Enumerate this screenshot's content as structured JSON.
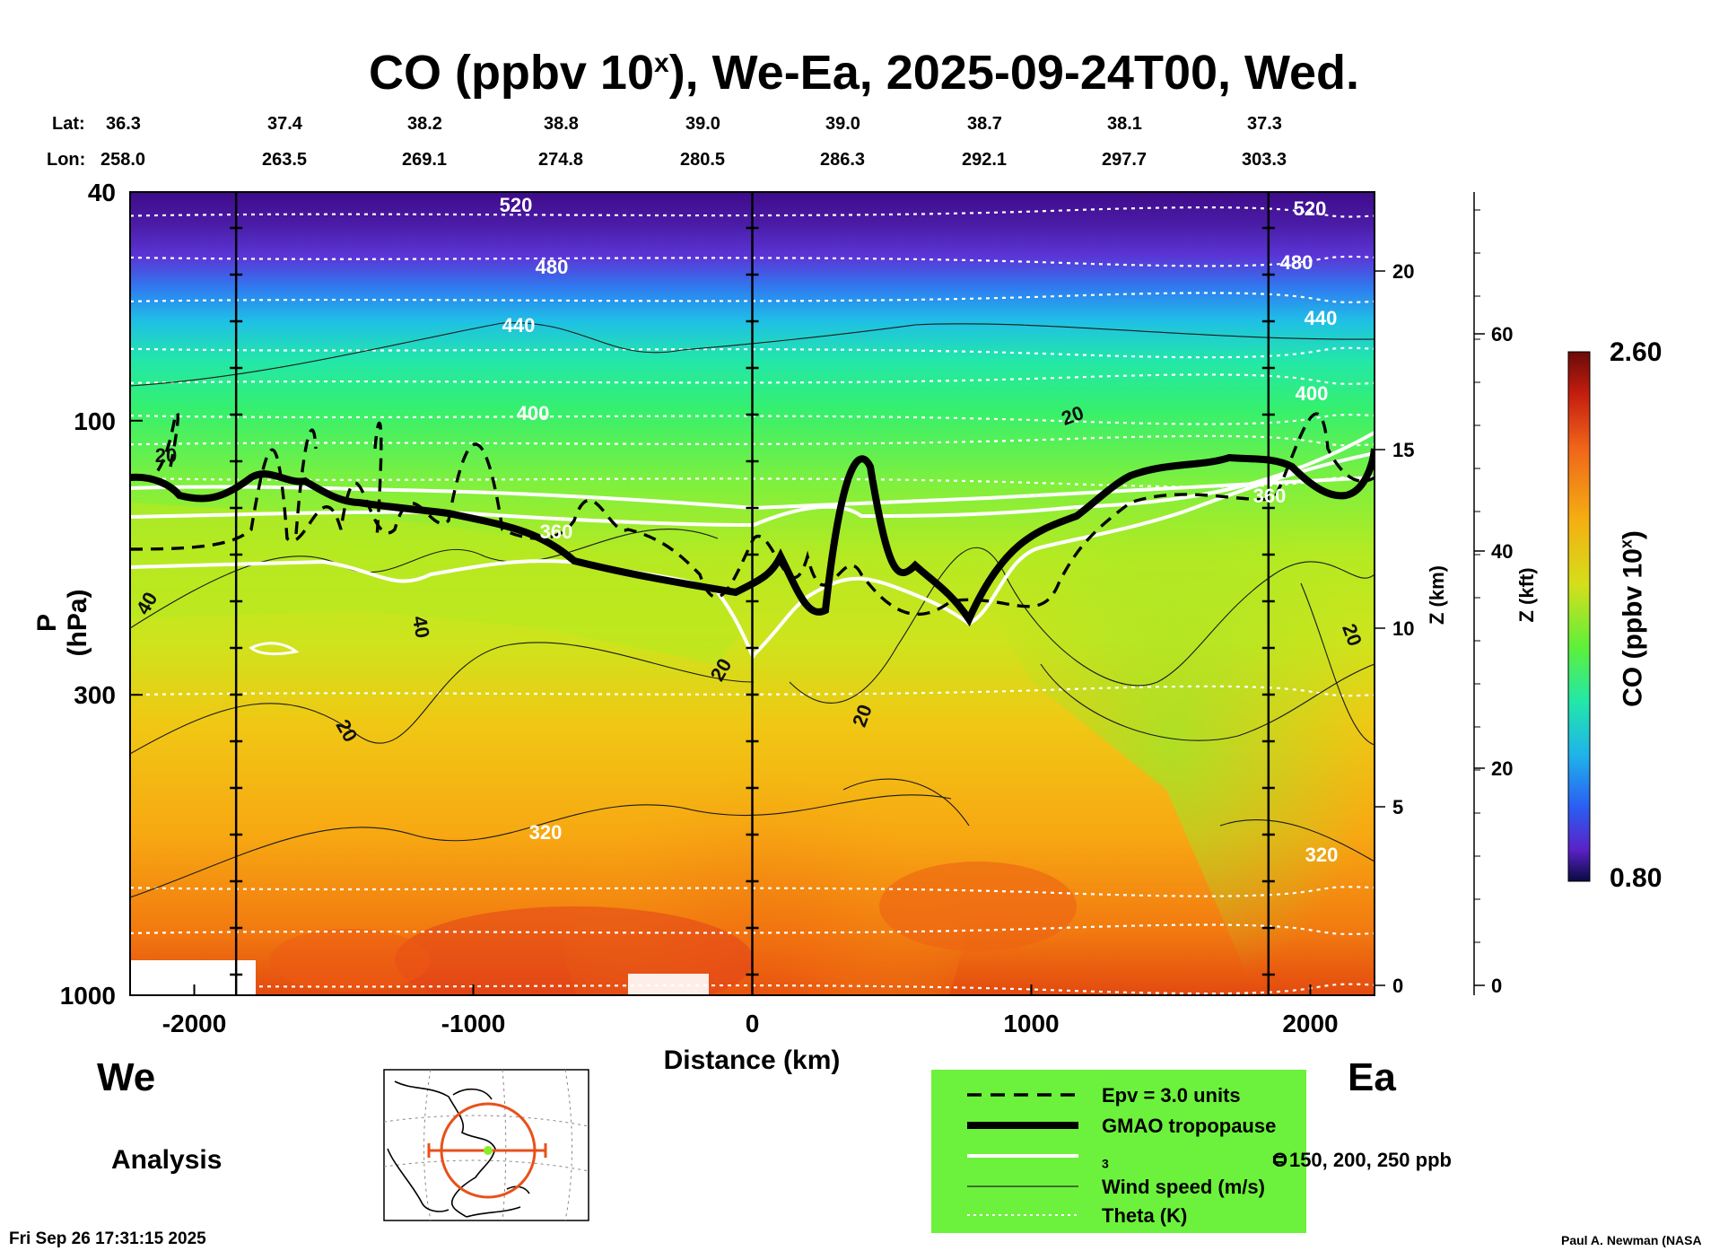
{
  "chart_data": {
    "type": "heatmap",
    "title_main": "CO (ppbv 10",
    "title_sup": "x",
    "title_tail": "), We-Ea, 2025-09-24T00, Wed.",
    "lat_label": "Lat:",
    "lon_label": "Lon:",
    "lat": [
      "36.3",
      "37.4",
      "38.2",
      "38.8",
      "39.0",
      "39.0",
      "38.7",
      "38.1",
      "37.3"
    ],
    "lon": [
      "258.0",
      "263.5",
      "269.1",
      "274.8",
      "280.5",
      "286.3",
      "292.1",
      "297.7",
      "303.3"
    ],
    "xlabel": "Distance (km)",
    "ylabel": "P (hPa)",
    "x_ticks": [
      -2000,
      -1000,
      0,
      1000,
      2000
    ],
    "x_tick_labels": [
      "-2000",
      "-1000",
      "0",
      "1000",
      "2000"
    ],
    "xlim": [
      -2230,
      2230
    ],
    "y_ticks": [
      40,
      100,
      300,
      1000
    ],
    "y_tick_labels": [
      "40",
      "100",
      "300",
      "1000"
    ],
    "ylim_hpa": [
      1000,
      40
    ],
    "y_scale": "log",
    "z_km_label": "Z (km)",
    "z_km_ticks": [
      "0",
      "5",
      "10",
      "15",
      "20"
    ],
    "z_kft_label": "Z (kft)",
    "z_kft_ticks": [
      "0",
      "20",
      "40",
      "60"
    ],
    "colorbar_label": "CO (ppbv 10",
    "colorbar_sup": "x",
    "colorbar_tail": ")",
    "colorbar_max": "2.60",
    "colorbar_min": "0.80",
    "theta_labels": [
      "520",
      "480",
      "440",
      "400",
      "360",
      "320",
      "520",
      "480",
      "440",
      "400",
      "360",
      "320"
    ],
    "wind_labels": [
      "20",
      "40",
      "40",
      "20",
      "20",
      "20",
      "20",
      "20"
    ],
    "vertical_lines_km": [
      -1850,
      0,
      1850
    ],
    "colors": {
      "co_high": "#d72d0f",
      "co_mid": "#f6a312",
      "co_low": "#a9ec1f",
      "strat": "#3bf06b",
      "top": "#4a0c9c"
    }
  },
  "labels": {
    "west": "We",
    "east": "Ea",
    "analysis": "Analysis",
    "timestamp": "Fri Sep 26 17:31:15 2025",
    "credit": "Paul A. Newman (NASA"
  },
  "legend": {
    "epv": "Epv = 3.0 units",
    "tropopause": "GMAO tropopause",
    "ozone_main": "O",
    "ozone_sub": "3",
    "ozone_tail": " = 150, 200, 250 ppb",
    "wind": "Wind speed (m/s)",
    "theta": "Theta (K)"
  }
}
